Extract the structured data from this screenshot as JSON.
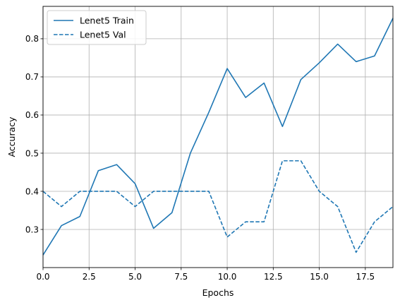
{
  "chart_data": {
    "type": "line",
    "title": "",
    "xlabel": "Epochs",
    "ylabel": "Accuracy",
    "xlim": [
      0,
      19
    ],
    "ylim": [
      0.2,
      0.885
    ],
    "grid": true,
    "legend_position": "top-left",
    "x_ticks": [
      0,
      2.5,
      5,
      7.5,
      10,
      12.5,
      15,
      17.5
    ],
    "x_tick_labels": [
      "0.0",
      "2.5",
      "5.0",
      "7.5",
      "10.0",
      "12.5",
      "15.0",
      "17.5"
    ],
    "y_ticks": [
      0.3,
      0.4,
      0.5,
      0.6,
      0.7,
      0.8
    ],
    "y_tick_labels": [
      "0.3",
      "0.4",
      "0.5",
      "0.6",
      "0.7",
      "0.8"
    ],
    "x": [
      0,
      1,
      2,
      3,
      4,
      5,
      6,
      7,
      8,
      9,
      10,
      11,
      12,
      13,
      14,
      15,
      16,
      17,
      18,
      19
    ],
    "series": [
      {
        "name": "Lenet5 Train",
        "style": "solid",
        "color": "#1f77b4",
        "values": [
          0.233,
          0.31,
          0.334,
          0.454,
          0.47,
          0.42,
          0.303,
          0.344,
          0.5,
          0.607,
          0.722,
          0.646,
          0.684,
          0.57,
          0.693,
          0.737,
          0.786,
          0.74,
          0.755,
          0.854
        ]
      },
      {
        "name": "Lenet5 Val",
        "style": "dashed",
        "color": "#1f77b4",
        "values": [
          0.4,
          0.36,
          0.4,
          0.4,
          0.4,
          0.36,
          0.4,
          0.4,
          0.4,
          0.4,
          0.28,
          0.32,
          0.32,
          0.48,
          0.48,
          0.4,
          0.36,
          0.24,
          0.32,
          0.36
        ]
      }
    ]
  }
}
